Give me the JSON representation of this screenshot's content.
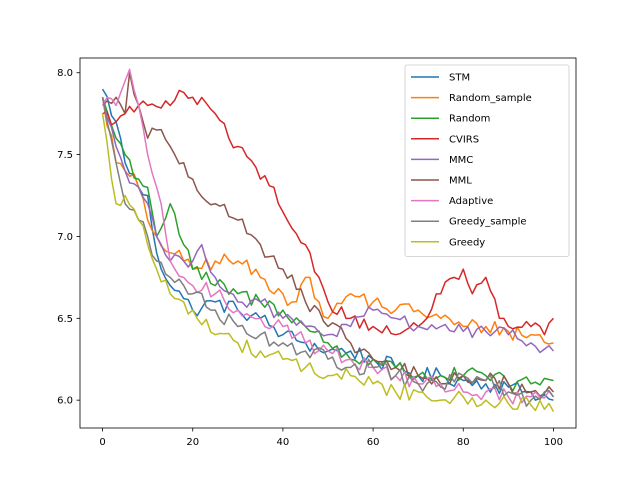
{
  "chart_data": {
    "type": "line",
    "title": "",
    "xlabel": "",
    "ylabel": "",
    "xlim": [
      -5,
      105
    ],
    "ylim": [
      5.83,
      8.09
    ],
    "xticks": [
      0,
      20,
      40,
      60,
      80,
      100
    ],
    "xtick_labels": [
      "0",
      "20",
      "40",
      "60",
      "80",
      "100"
    ],
    "yticks": [
      6.0,
      6.5,
      7.0,
      7.5,
      8.0
    ],
    "ytick_labels": [
      "6.0",
      "6.5",
      "7.0",
      "7.5",
      "8.0"
    ],
    "grid": false,
    "legend_position": "upper right",
    "x_step": 1,
    "series": [
      {
        "name": "STM",
        "color": "#1f77b4",
        "anchors": [
          [
            0,
            7.9
          ],
          [
            3,
            7.7
          ],
          [
            5,
            7.45
          ],
          [
            8,
            7.3
          ],
          [
            10,
            7.25
          ],
          [
            12,
            6.9
          ],
          [
            15,
            6.7
          ],
          [
            18,
            6.62
          ],
          [
            20,
            6.55
          ],
          [
            25,
            6.6
          ],
          [
            30,
            6.55
          ],
          [
            35,
            6.5
          ],
          [
            40,
            6.4
          ],
          [
            45,
            6.35
          ],
          [
            50,
            6.3
          ],
          [
            55,
            6.3
          ],
          [
            60,
            6.25
          ],
          [
            65,
            6.2
          ],
          [
            70,
            6.15
          ],
          [
            75,
            6.15
          ],
          [
            80,
            6.12
          ],
          [
            85,
            6.1
          ],
          [
            90,
            6.08
          ],
          [
            95,
            6.05
          ],
          [
            100,
            6.0
          ]
        ],
        "noise": 0.05
      },
      {
        "name": "Random_sample",
        "color": "#ff7f0e",
        "anchors": [
          [
            0,
            7.85
          ],
          [
            3,
            7.45
          ],
          [
            5,
            7.4
          ],
          [
            8,
            7.3
          ],
          [
            10,
            7.1
          ],
          [
            12,
            7.0
          ],
          [
            15,
            6.9
          ],
          [
            18,
            6.85
          ],
          [
            20,
            6.8
          ],
          [
            25,
            6.85
          ],
          [
            30,
            6.85
          ],
          [
            35,
            6.75
          ],
          [
            40,
            6.65
          ],
          [
            42,
            6.6
          ],
          [
            45,
            6.75
          ],
          [
            48,
            6.6
          ],
          [
            50,
            6.5
          ],
          [
            55,
            6.65
          ],
          [
            60,
            6.6
          ],
          [
            65,
            6.55
          ],
          [
            70,
            6.55
          ],
          [
            75,
            6.5
          ],
          [
            80,
            6.45
          ],
          [
            85,
            6.45
          ],
          [
            90,
            6.42
          ],
          [
            95,
            6.4
          ],
          [
            100,
            6.35
          ]
        ],
        "noise": 0.05
      },
      {
        "name": "Random",
        "color": "#2ca02c",
        "anchors": [
          [
            0,
            7.85
          ],
          [
            3,
            7.6
          ],
          [
            5,
            7.5
          ],
          [
            8,
            7.35
          ],
          [
            10,
            7.3
          ],
          [
            12,
            7.0
          ],
          [
            15,
            7.2
          ],
          [
            18,
            6.95
          ],
          [
            20,
            6.8
          ],
          [
            25,
            6.7
          ],
          [
            30,
            6.65
          ],
          [
            35,
            6.6
          ],
          [
            40,
            6.55
          ],
          [
            45,
            6.45
          ],
          [
            50,
            6.35
          ],
          [
            55,
            6.25
          ],
          [
            60,
            6.25
          ],
          [
            65,
            6.2
          ],
          [
            70,
            6.15
          ],
          [
            75,
            6.15
          ],
          [
            80,
            6.15
          ],
          [
            85,
            6.15
          ],
          [
            90,
            6.1
          ],
          [
            95,
            6.1
          ],
          [
            100,
            6.12
          ]
        ],
        "noise": 0.05
      },
      {
        "name": "CVIRS",
        "color": "#d62728",
        "anchors": [
          [
            0,
            7.75
          ],
          [
            3,
            7.7
          ],
          [
            5,
            7.75
          ],
          [
            8,
            7.8
          ],
          [
            10,
            7.8
          ],
          [
            15,
            7.8
          ],
          [
            18,
            7.88
          ],
          [
            20,
            7.85
          ],
          [
            25,
            7.75
          ],
          [
            28,
            7.6
          ],
          [
            30,
            7.55
          ],
          [
            35,
            7.35
          ],
          [
            38,
            7.3
          ],
          [
            40,
            7.15
          ],
          [
            42,
            7.05
          ],
          [
            45,
            6.95
          ],
          [
            48,
            6.75
          ],
          [
            50,
            6.6
          ],
          [
            55,
            6.5
          ],
          [
            60,
            6.45
          ],
          [
            65,
            6.4
          ],
          [
            70,
            6.45
          ],
          [
            75,
            6.65
          ],
          [
            78,
            6.75
          ],
          [
            80,
            6.8
          ],
          [
            82,
            6.65
          ],
          [
            85,
            6.75
          ],
          [
            88,
            6.5
          ],
          [
            90,
            6.45
          ],
          [
            95,
            6.45
          ],
          [
            98,
            6.4
          ],
          [
            100,
            6.5
          ]
        ],
        "noise": 0.04
      },
      {
        "name": "MMC",
        "color": "#9467bd",
        "anchors": [
          [
            0,
            7.85
          ],
          [
            3,
            7.55
          ],
          [
            5,
            7.4
          ],
          [
            8,
            7.3
          ],
          [
            10,
            7.2
          ],
          [
            12,
            7.0
          ],
          [
            15,
            6.85
          ],
          [
            18,
            6.85
          ],
          [
            20,
            6.85
          ],
          [
            22,
            6.95
          ],
          [
            25,
            6.75
          ],
          [
            30,
            6.6
          ],
          [
            35,
            6.6
          ],
          [
            40,
            6.5
          ],
          [
            45,
            6.45
          ],
          [
            50,
            6.4
          ],
          [
            55,
            6.45
          ],
          [
            60,
            6.55
          ],
          [
            65,
            6.5
          ],
          [
            70,
            6.45
          ],
          [
            75,
            6.45
          ],
          [
            80,
            6.42
          ],
          [
            85,
            6.42
          ],
          [
            90,
            6.4
          ],
          [
            95,
            6.35
          ],
          [
            100,
            6.3
          ]
        ],
        "noise": 0.04
      },
      {
        "name": "MML",
        "color": "#8c564b",
        "anchors": [
          [
            0,
            7.8
          ],
          [
            3,
            7.85
          ],
          [
            5,
            7.75
          ],
          [
            6,
            8.0
          ],
          [
            8,
            7.8
          ],
          [
            10,
            7.6
          ],
          [
            12,
            7.65
          ],
          [
            15,
            7.55
          ],
          [
            18,
            7.45
          ],
          [
            20,
            7.35
          ],
          [
            25,
            7.2
          ],
          [
            30,
            7.1
          ],
          [
            35,
            6.95
          ],
          [
            40,
            6.8
          ],
          [
            45,
            6.6
          ],
          [
            50,
            6.45
          ],
          [
            55,
            6.35
          ],
          [
            60,
            6.25
          ],
          [
            65,
            6.2
          ],
          [
            70,
            6.15
          ],
          [
            75,
            6.1
          ],
          [
            80,
            6.15
          ],
          [
            85,
            6.12
          ],
          [
            90,
            6.1
          ],
          [
            95,
            6.05
          ],
          [
            100,
            6.05
          ]
        ],
        "noise": 0.05
      },
      {
        "name": "Adaptive",
        "color": "#e377c2",
        "anchors": [
          [
            0,
            7.8
          ],
          [
            3,
            7.8
          ],
          [
            5,
            7.95
          ],
          [
            6,
            8.02
          ],
          [
            8,
            7.8
          ],
          [
            10,
            7.5
          ],
          [
            12,
            7.3
          ],
          [
            15,
            6.85
          ],
          [
            18,
            6.75
          ],
          [
            20,
            6.7
          ],
          [
            25,
            6.65
          ],
          [
            30,
            6.55
          ],
          [
            35,
            6.5
          ],
          [
            40,
            6.45
          ],
          [
            45,
            6.35
          ],
          [
            50,
            6.3
          ],
          [
            55,
            6.25
          ],
          [
            60,
            6.2
          ],
          [
            65,
            6.15
          ],
          [
            70,
            6.1
          ],
          [
            75,
            6.1
          ],
          [
            80,
            6.05
          ],
          [
            85,
            6.05
          ],
          [
            90,
            6.02
          ],
          [
            95,
            6.02
          ],
          [
            100,
            6.02
          ]
        ],
        "noise": 0.05
      },
      {
        "name": "Greedy_sample",
        "color": "#7f7f7f",
        "anchors": [
          [
            0,
            7.85
          ],
          [
            3,
            7.45
          ],
          [
            5,
            7.2
          ],
          [
            8,
            7.1
          ],
          [
            10,
            7.0
          ],
          [
            12,
            6.85
          ],
          [
            15,
            6.75
          ],
          [
            18,
            6.7
          ],
          [
            20,
            6.65
          ],
          [
            25,
            6.55
          ],
          [
            30,
            6.45
          ],
          [
            35,
            6.4
          ],
          [
            40,
            6.35
          ],
          [
            45,
            6.3
          ],
          [
            50,
            6.25
          ],
          [
            55,
            6.2
          ],
          [
            60,
            6.2
          ],
          [
            65,
            6.15
          ],
          [
            70,
            6.1
          ],
          [
            75,
            6.08
          ],
          [
            80,
            6.15
          ],
          [
            85,
            6.12
          ],
          [
            90,
            6.05
          ],
          [
            95,
            6.0
          ],
          [
            100,
            6.02
          ]
        ],
        "noise": 0.05
      },
      {
        "name": "Greedy",
        "color": "#bcbd22",
        "anchors": [
          [
            0,
            7.75
          ],
          [
            2,
            7.35
          ],
          [
            3,
            7.2
          ],
          [
            5,
            7.25
          ],
          [
            8,
            7.1
          ],
          [
            10,
            6.95
          ],
          [
            12,
            6.8
          ],
          [
            15,
            6.65
          ],
          [
            18,
            6.6
          ],
          [
            20,
            6.55
          ],
          [
            25,
            6.4
          ],
          [
            30,
            6.35
          ],
          [
            35,
            6.3
          ],
          [
            40,
            6.25
          ],
          [
            45,
            6.2
          ],
          [
            50,
            6.15
          ],
          [
            55,
            6.15
          ],
          [
            60,
            6.1
          ],
          [
            65,
            6.05
          ],
          [
            70,
            6.05
          ],
          [
            75,
            6.0
          ],
          [
            80,
            6.02
          ],
          [
            85,
            6.0
          ],
          [
            90,
            5.98
          ],
          [
            95,
            5.97
          ],
          [
            100,
            5.93
          ]
        ],
        "noise": 0.05
      }
    ]
  }
}
